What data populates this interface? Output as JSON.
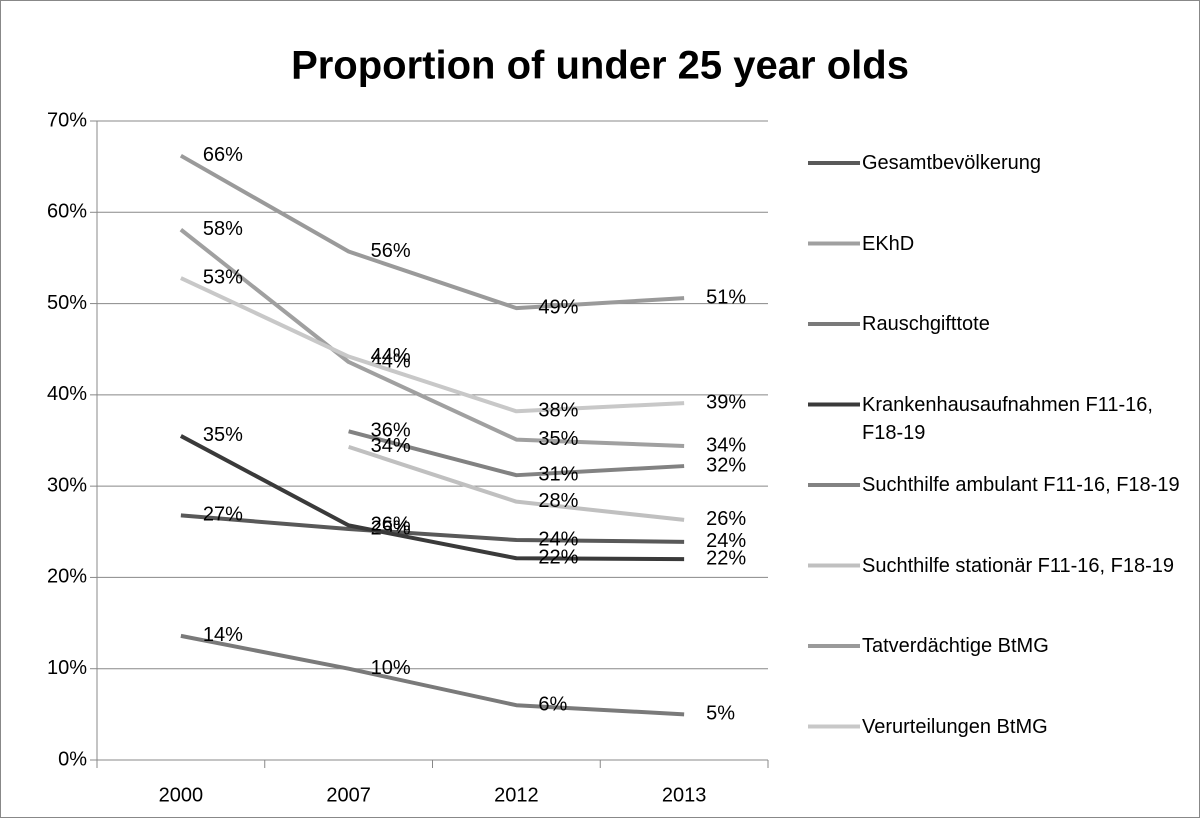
{
  "chart_data": {
    "type": "line",
    "title": "Proportion of under 25 year olds",
    "categories": [
      "2000",
      "2007",
      "2012",
      "2013"
    ],
    "ylim": [
      0,
      70
    ],
    "yticks": [
      {
        "value": 0,
        "label": "0%"
      },
      {
        "value": 10,
        "label": "10%"
      },
      {
        "value": 20,
        "label": "20%"
      },
      {
        "value": 30,
        "label": "30%"
      },
      {
        "value": 40,
        "label": "40%"
      },
      {
        "value": 50,
        "label": "50%"
      },
      {
        "value": 60,
        "label": "60%"
      },
      {
        "value": 70,
        "label": "70%"
      }
    ],
    "grid": true,
    "legend": "right",
    "series": [
      {
        "name": "Gesamtbevölkerung",
        "color": "#595959",
        "values": [
          26.8,
          25.3,
          24.1,
          23.9
        ],
        "value_labels": [
          "27%",
          "25%",
          "24%",
          "24%"
        ]
      },
      {
        "name": "EKhD",
        "color": "#a0a0a0",
        "values": [
          58.1,
          43.6,
          35.1,
          34.4
        ],
        "value_labels": [
          "58%",
          "44%",
          "35%",
          "34%"
        ]
      },
      {
        "name": "Rauschgifttote",
        "color": "#7a7a7a",
        "values": [
          13.6,
          10.0,
          6.0,
          5.0
        ],
        "value_labels": [
          "14%",
          "10%",
          "6%",
          "5%"
        ]
      },
      {
        "name": "Krankenhausaufnahmen F11-16, F18-19",
        "color": "#3a3a3a",
        "values": [
          35.5,
          25.7,
          22.1,
          22.0
        ],
        "value_labels": [
          "35%",
          "26%",
          "22%",
          "22%"
        ]
      },
      {
        "name": "Suchthilfe ambulant F11-16, F18-19",
        "color": "#828282",
        "values": [
          null,
          36.0,
          31.2,
          32.2
        ],
        "value_labels": [
          null,
          "36%",
          "31%",
          "32%"
        ]
      },
      {
        "name": "Suchthilfe stationär F11-16, F18-19",
        "color": "#c0c0c0",
        "values": [
          null,
          34.3,
          28.3,
          26.3
        ],
        "value_labels": [
          null,
          "34%",
          "28%",
          "26%"
        ]
      },
      {
        "name": "Tatverdächtige BtMG",
        "color": "#9a9a9a",
        "values": [
          66.2,
          55.7,
          49.5,
          50.6
        ],
        "value_labels": [
          "66%",
          "56%",
          "49%",
          "51%"
        ]
      },
      {
        "name": "Verurteilungen BtMG",
        "color": "#c8c8c8",
        "values": [
          52.8,
          44.2,
          38.2,
          39.1
        ],
        "value_labels": [
          "53%",
          "44%",
          "38%",
          "39%"
        ]
      }
    ]
  }
}
